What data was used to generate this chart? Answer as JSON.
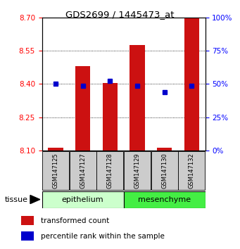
{
  "title": "GDS2699 / 1445473_at",
  "samples": [
    "GSM147125",
    "GSM147127",
    "GSM147128",
    "GSM147129",
    "GSM147130",
    "GSM147132"
  ],
  "bar_heights": [
    8.112,
    8.48,
    8.405,
    8.575,
    8.112,
    8.7
  ],
  "bar_base": 8.1,
  "blue_values_left": [
    8.4,
    8.393,
    8.413,
    8.393,
    8.362,
    8.393
  ],
  "ylim_left": [
    8.1,
    8.7
  ],
  "ylim_right": [
    0,
    100
  ],
  "yticks_left": [
    8.1,
    8.25,
    8.4,
    8.55,
    8.7
  ],
  "yticks_right": [
    0,
    25,
    50,
    75,
    100
  ],
  "bar_color": "#cc1111",
  "blue_color": "#0000cc",
  "bar_width": 0.55,
  "sample_box_color": "#cccccc",
  "epithelium_color": "#ccffcc",
  "mesenchyme_color": "#44ee44",
  "legend_items": [
    {
      "label": "transformed count",
      "color": "#cc1111"
    },
    {
      "label": "percentile rank within the sample",
      "color": "#0000cc"
    }
  ]
}
